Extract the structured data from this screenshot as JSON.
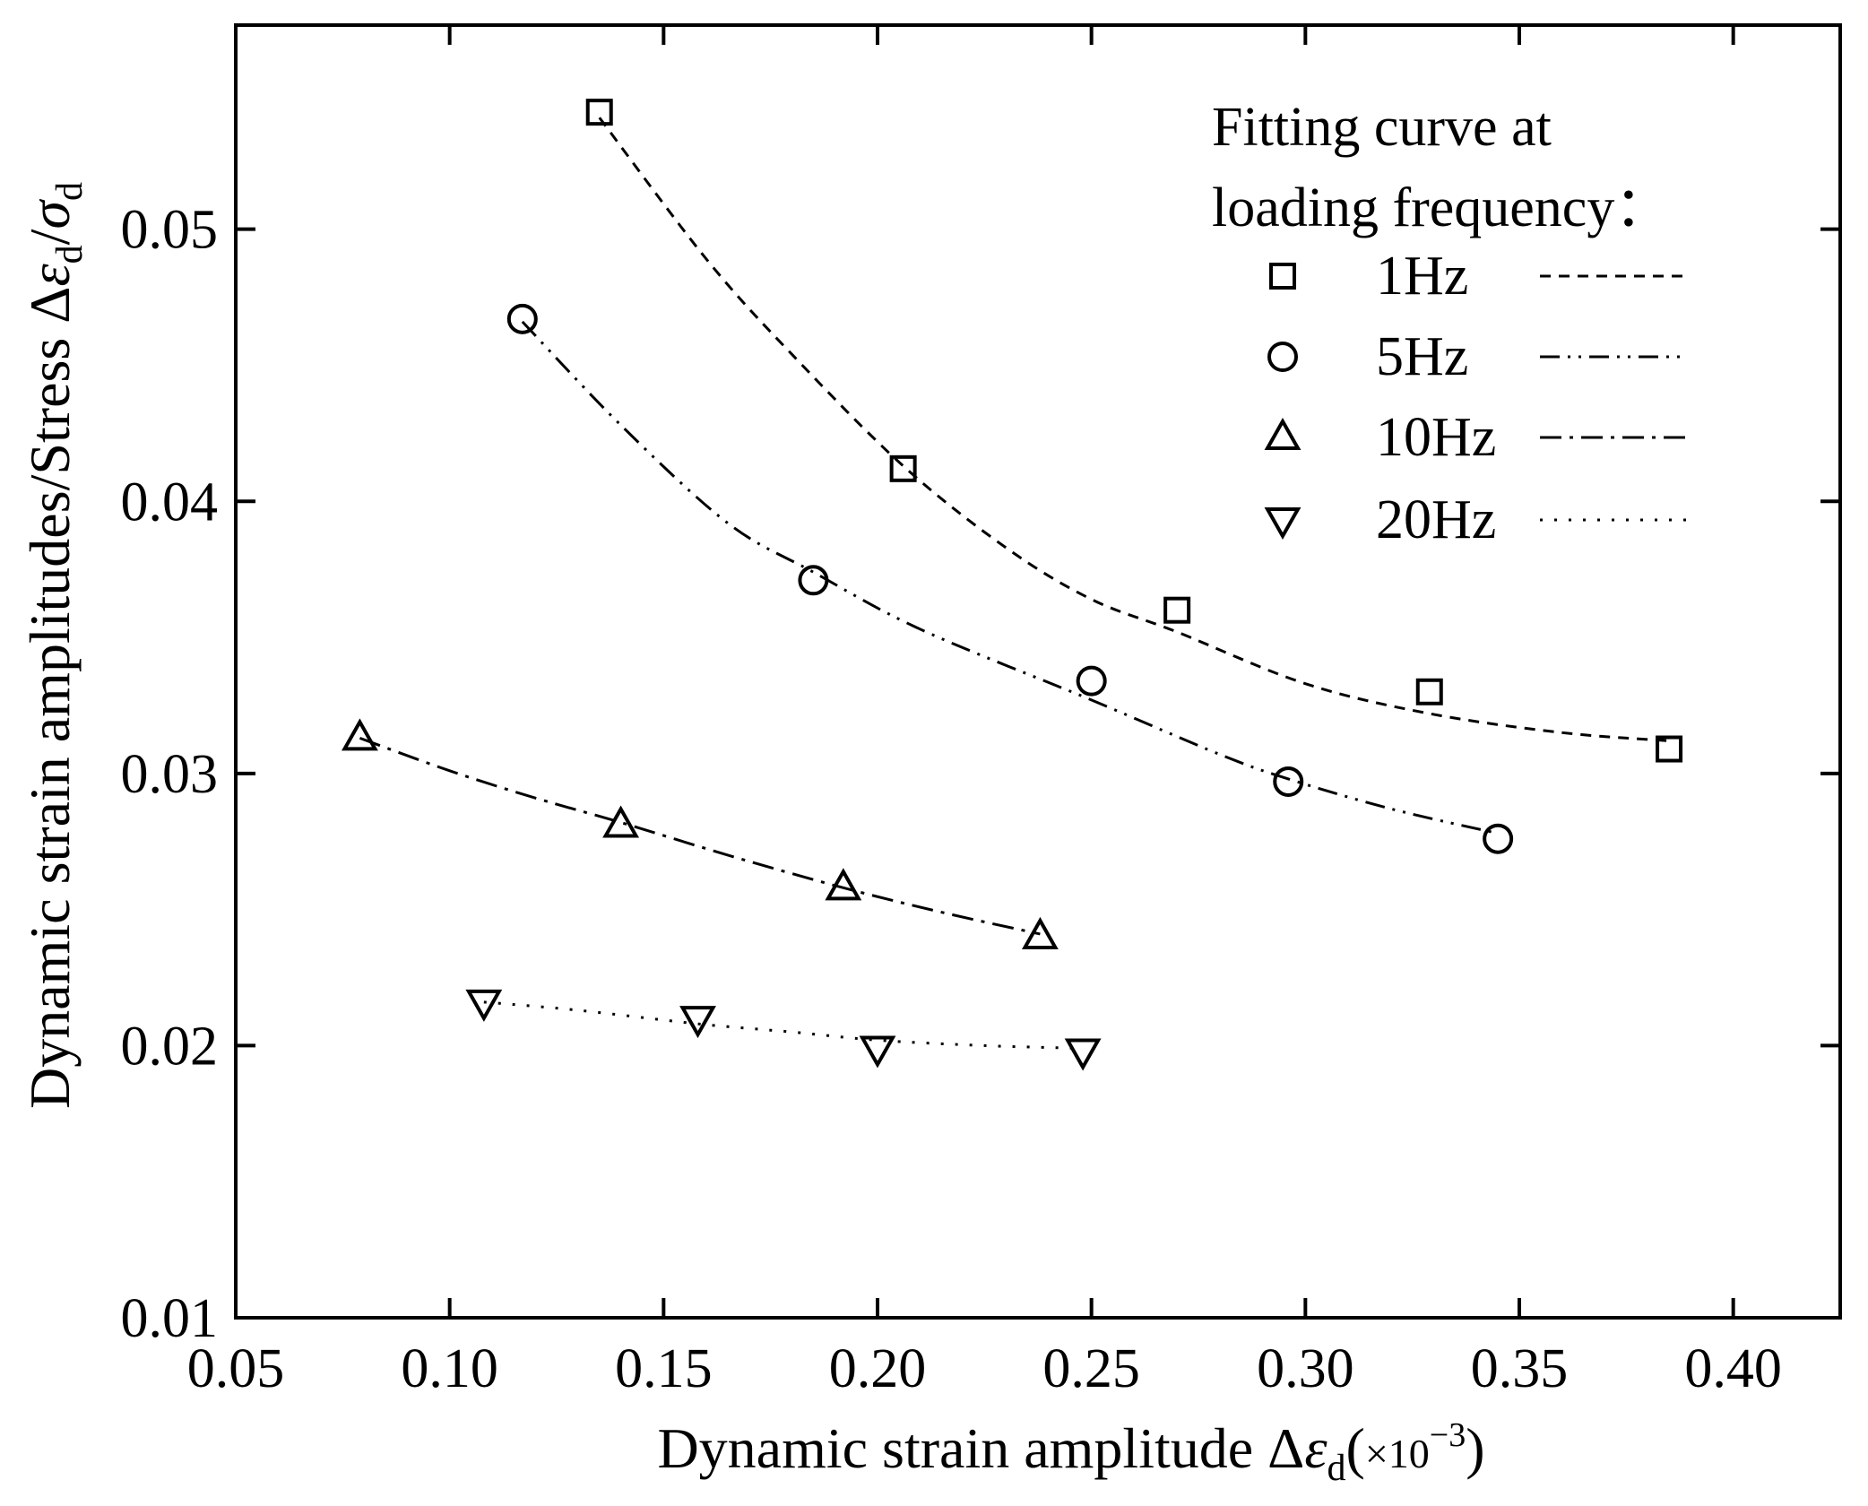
{
  "chart_data": {
    "type": "scatter",
    "xlabel": {
      "prefix": "Dynamic strain amplitude ",
      "delta": "Δ",
      "epsilon": "ε",
      "sub": "d",
      "unit_open": "(",
      "unit_times": "×10",
      "unit_exp": "−3",
      "unit_close": ")"
    },
    "ylabel": {
      "prefix": "Dynamic strain amplitudes/Stress ",
      "delta": "Δ",
      "epsilon": "ε",
      "sub1": "d",
      "slash": "/",
      "sigma": "σ",
      "sub2": "d"
    },
    "xlim": [
      0.05,
      0.425
    ],
    "ylim": [
      0.01,
      0.0575
    ],
    "x_ticks": [
      "0.05",
      "0.10",
      "0.15",
      "0.20",
      "0.25",
      "0.30",
      "0.35",
      "0.40"
    ],
    "x_tick_values": [
      0.05,
      0.1,
      0.15,
      0.2,
      0.25,
      0.3,
      0.35,
      0.4
    ],
    "y_ticks": [
      "0.01",
      "0.02",
      "0.03",
      "0.04",
      "0.05"
    ],
    "y_tick_values": [
      0.01,
      0.02,
      0.03,
      0.04,
      0.05
    ],
    "legend": {
      "title_line1": "Fitting curve at",
      "title_line2": "loading frequency：",
      "position": "top-right"
    },
    "series": [
      {
        "name": "1Hz",
        "marker": "square",
        "dash": "12,9",
        "x": [
          0.135,
          0.206,
          0.27,
          0.329,
          0.385
        ],
        "y": [
          0.0543,
          0.0412,
          0.036,
          0.033,
          0.0309
        ],
        "fit": [
          [
            0.135,
            0.0541
          ],
          [
            0.16,
            0.0489
          ],
          [
            0.18,
            0.0454
          ],
          [
            0.206,
            0.0413
          ],
          [
            0.23,
            0.0383
          ],
          [
            0.25,
            0.0364
          ],
          [
            0.27,
            0.0352
          ],
          [
            0.3,
            0.0333
          ],
          [
            0.329,
            0.0322
          ],
          [
            0.36,
            0.0315
          ],
          [
            0.385,
            0.0312
          ]
        ]
      },
      {
        "name": "5Hz",
        "marker": "circle",
        "dash": "22,9,3,9,3,9",
        "x": [
          0.117,
          0.185,
          0.25,
          0.296,
          0.345
        ],
        "y": [
          0.0467,
          0.0371,
          0.0334,
          0.0297,
          0.0276
        ],
        "fit": [
          [
            0.117,
            0.0466
          ],
          [
            0.14,
            0.0428
          ],
          [
            0.165,
            0.0392
          ],
          [
            0.185,
            0.0374
          ],
          [
            0.21,
            0.0353
          ],
          [
            0.25,
            0.0327
          ],
          [
            0.28,
            0.0307
          ],
          [
            0.296,
            0.0298
          ],
          [
            0.32,
            0.0287
          ],
          [
            0.345,
            0.0278
          ]
        ]
      },
      {
        "name": "10Hz",
        "marker": "triangle-up",
        "dash": "24,9,4,9",
        "x": [
          0.079,
          0.14,
          0.192,
          0.238
        ],
        "y": [
          0.0313,
          0.0281,
          0.0258,
          0.024
        ],
        "fit": [
          [
            0.079,
            0.0313
          ],
          [
            0.1,
            0.0301
          ],
          [
            0.12,
            0.0291
          ],
          [
            0.14,
            0.0282
          ],
          [
            0.165,
            0.027
          ],
          [
            0.192,
            0.0258
          ],
          [
            0.215,
            0.0249
          ],
          [
            0.238,
            0.0241
          ]
        ]
      },
      {
        "name": "20Hz",
        "marker": "triangle-down",
        "dash": "3,13",
        "x": [
          0.108,
          0.158,
          0.2,
          0.248
        ],
        "y": [
          0.0216,
          0.021,
          0.0199,
          0.0198
        ],
        "fit": [
          [
            0.108,
            0.0216
          ],
          [
            0.13,
            0.0213
          ],
          [
            0.158,
            0.0208
          ],
          [
            0.18,
            0.0205
          ],
          [
            0.2,
            0.0202
          ],
          [
            0.225,
            0.02
          ],
          [
            0.248,
            0.0199
          ]
        ]
      }
    ]
  }
}
